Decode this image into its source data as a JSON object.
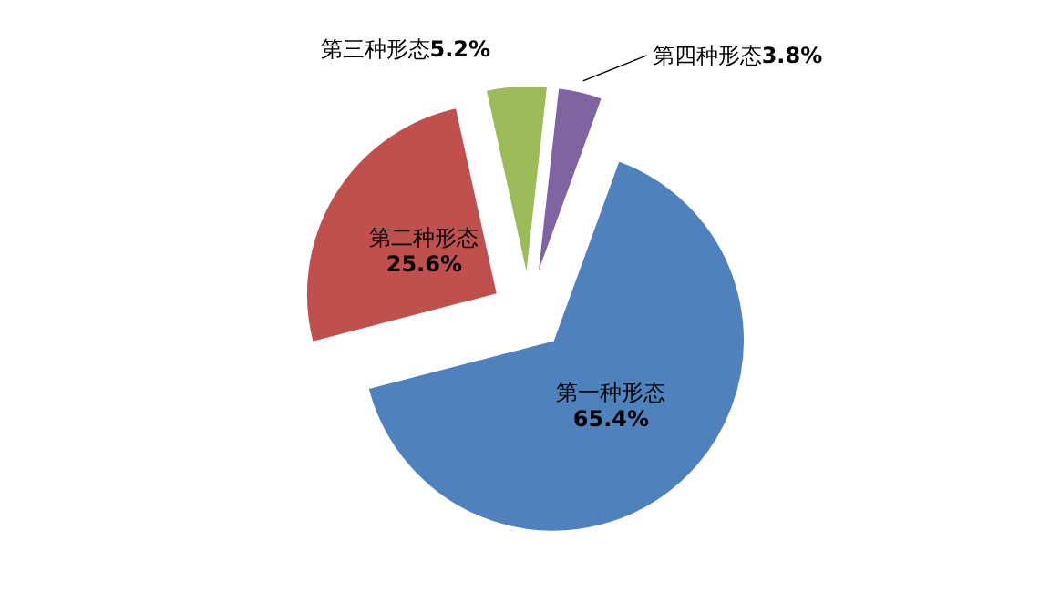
{
  "chart_data": {
    "type": "pie",
    "categories": [
      "第一种形态",
      "第二种形态",
      "第三种形态",
      "第四种形态"
    ],
    "values": [
      65.4,
      25.6,
      5.2,
      3.8
    ],
    "colors": [
      "#4f81bd",
      "#c0504d",
      "#9bbb59",
      "#8064a2"
    ],
    "value_labels": [
      "65.4%",
      "25.6%",
      "5.2%",
      "3.8%"
    ]
  }
}
